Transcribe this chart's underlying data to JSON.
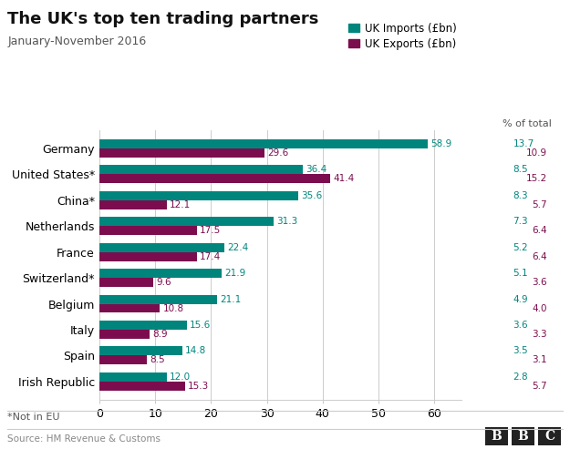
{
  "title": "The UK's top ten trading partners",
  "subtitle": "January-November 2016",
  "countries": [
    "Germany",
    "United States*",
    "China*",
    "Netherlands",
    "France",
    "Switzerland*",
    "Belgium",
    "Italy",
    "Spain",
    "Irish Republic"
  ],
  "imports": [
    58.9,
    36.4,
    35.6,
    31.3,
    22.4,
    21.9,
    21.1,
    15.6,
    14.8,
    12.0
  ],
  "exports": [
    29.6,
    41.4,
    12.1,
    17.5,
    17.4,
    9.6,
    10.8,
    8.9,
    8.5,
    15.3
  ],
  "pct_imports": [
    13.7,
    8.5,
    8.3,
    7.3,
    5.2,
    5.1,
    4.9,
    3.6,
    3.5,
    2.8
  ],
  "pct_exports": [
    10.9,
    15.2,
    5.7,
    6.4,
    6.4,
    3.6,
    4.0,
    3.3,
    3.1,
    5.7
  ],
  "import_color": "#00857d",
  "export_color": "#7b0d4e",
  "background_color": "#ffffff",
  "grid_color": "#cccccc",
  "bar_height": 0.35,
  "xlim": [
    0,
    65
  ],
  "xticks": [
    0,
    10,
    20,
    30,
    40,
    50,
    60
  ],
  "footnote": "*Not in EU",
  "source": "Source: HM Revenue & Customs",
  "legend_import": "UK Imports (£bn)",
  "legend_export": "UK Exports (£bn)",
  "pct_header": "% of total"
}
